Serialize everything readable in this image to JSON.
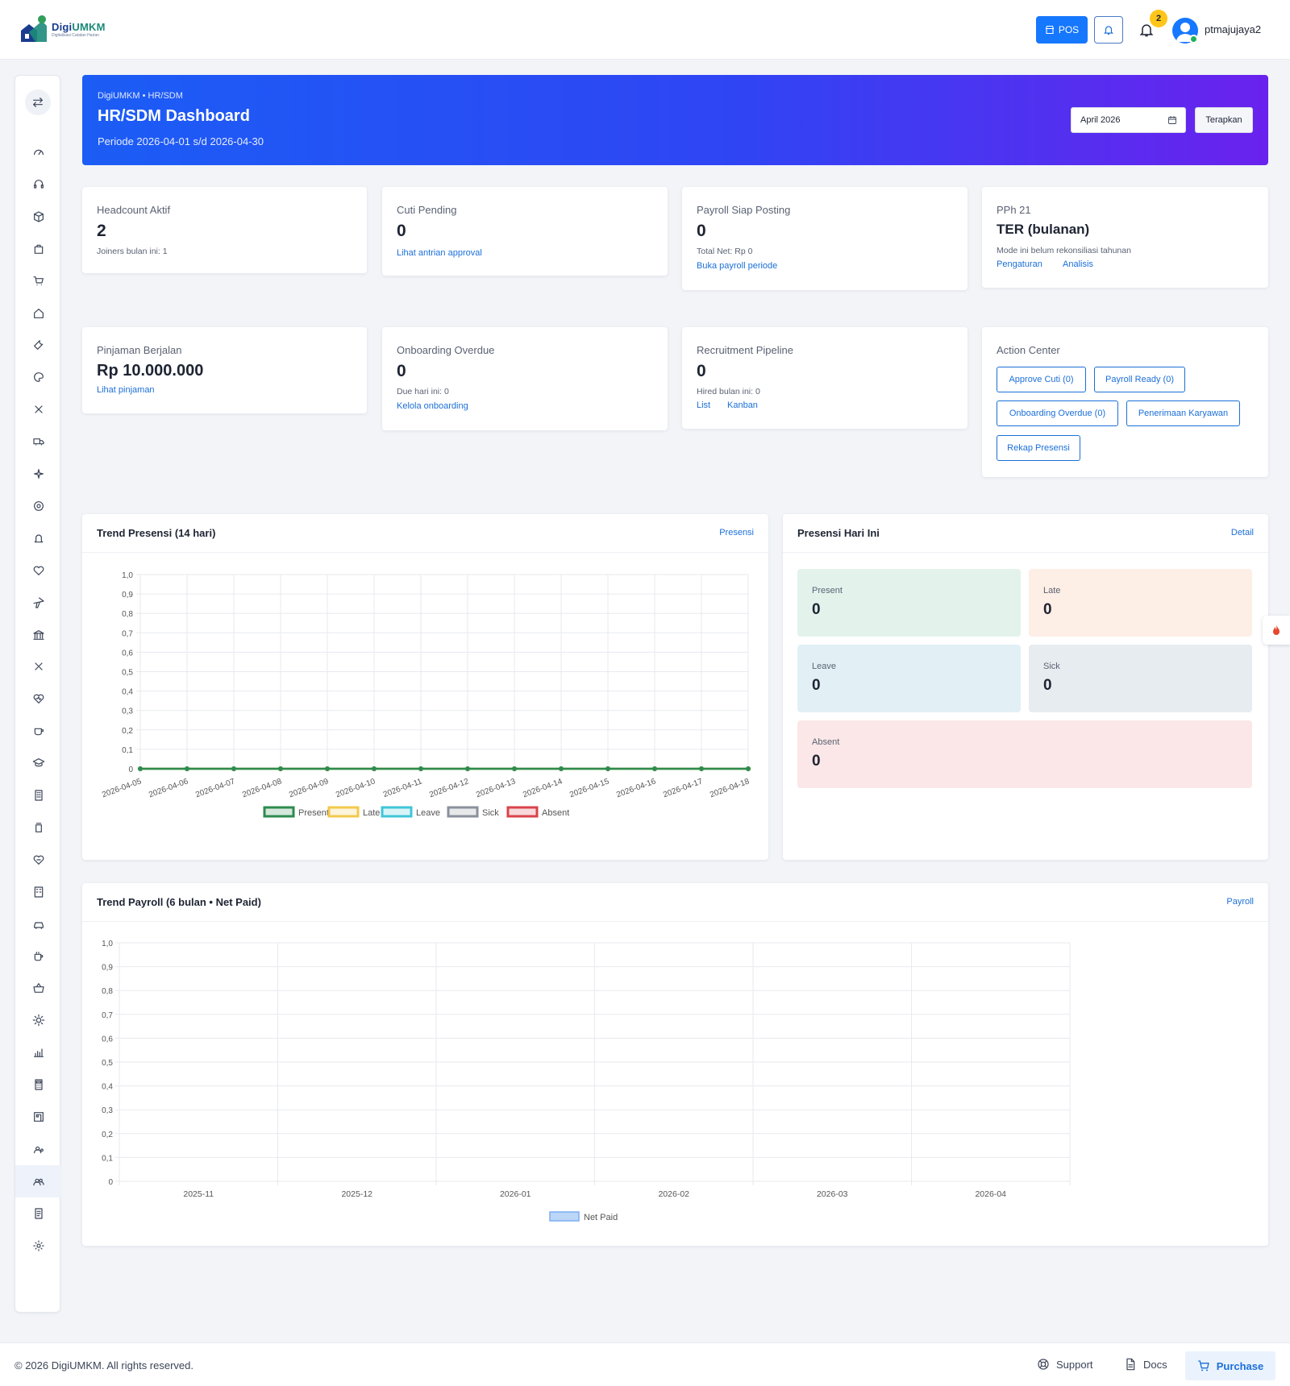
{
  "header": {
    "logo_name_a": "Digi",
    "logo_name_b": "UMKM",
    "logo_tagline": "Digitalisasi Catatan Harian",
    "pos_label": "POS",
    "notification_count": "2",
    "username": "ptmajujaya2"
  },
  "banner": {
    "breadcrumb": "DigiUMKM • HR/SDM",
    "title": "HR/SDM Dashboard",
    "period": "Periode 2026-04-01 s/d 2026-04-30",
    "month_value": "April 2026",
    "apply_label": "Terapkan"
  },
  "cards": {
    "headcount": {
      "label": "Headcount Aktif",
      "value": "2",
      "sub": "Joiners bulan ini: 1"
    },
    "cuti": {
      "label": "Cuti Pending",
      "value": "0",
      "link": "Lihat antrian approval"
    },
    "payroll": {
      "label": "Payroll Siap Posting",
      "value": "0",
      "sub": "Total Net: Rp 0",
      "link": "Buka payroll periode"
    },
    "pph": {
      "label": "PPh 21",
      "value": "TER (bulanan)",
      "sub": "Mode ini belum rekonsiliasi tahunan",
      "link1": "Pengaturan",
      "link2": "Analisis"
    },
    "pinjaman": {
      "label": "Pinjaman Berjalan",
      "value": "Rp 10.000.000",
      "link": "Lihat pinjaman"
    },
    "onboarding": {
      "label": "Onboarding Overdue",
      "value": "0",
      "sub": "Due hari ini: 0",
      "link": "Kelola onboarding"
    },
    "recruitment": {
      "label": "Recruitment Pipeline",
      "value": "0",
      "sub": "Hired bulan ini: 0",
      "link1": "List",
      "link2": "Kanban"
    },
    "action": {
      "label": "Action Center",
      "buttons": [
        "Approve Cuti (0)",
        "Payroll Ready (0)",
        "Onboarding Overdue (0)",
        "Penerimaan Karyawan",
        "Rekap Presensi"
      ]
    }
  },
  "trend_presensi": {
    "title": "Trend Presensi (14 hari)",
    "link": "Presensi"
  },
  "presensi_today": {
    "title": "Presensi Hari Ini",
    "link": "Detail",
    "tiles": [
      {
        "label": "Present",
        "value": "0",
        "color": "#e3f3ec"
      },
      {
        "label": "Late",
        "value": "0",
        "color": "#fdeee6"
      },
      {
        "label": "Leave",
        "value": "0",
        "color": "#e2f0f6"
      },
      {
        "label": "Sick",
        "value": "0",
        "color": "#e6ecef"
      },
      {
        "label": "Absent",
        "value": "0",
        "color": "#fbe7e7"
      }
    ]
  },
  "trend_payroll": {
    "title": "Trend Payroll (6 bulan • Net Paid)",
    "link": "Payroll"
  },
  "chart_data": [
    {
      "type": "line",
      "x": [
        "2026-04-05",
        "2026-04-06",
        "2026-04-07",
        "2026-04-08",
        "2026-04-09",
        "2026-04-10",
        "2026-04-11",
        "2026-04-12",
        "2026-04-13",
        "2026-04-14",
        "2026-04-15",
        "2026-04-16",
        "2026-04-17",
        "2026-04-18"
      ],
      "series": [
        {
          "name": "Present",
          "color": "#2e8b4e",
          "values": [
            0,
            0,
            0,
            0,
            0,
            0,
            0,
            0,
            0,
            0,
            0,
            0,
            0,
            0
          ]
        },
        {
          "name": "Late",
          "color": "#f2c94c",
          "values": [
            0,
            0,
            0,
            0,
            0,
            0,
            0,
            0,
            0,
            0,
            0,
            0,
            0,
            0
          ]
        },
        {
          "name": "Leave",
          "color": "#3fc6d8",
          "values": [
            0,
            0,
            0,
            0,
            0,
            0,
            0,
            0,
            0,
            0,
            0,
            0,
            0,
            0
          ]
        },
        {
          "name": "Sick",
          "color": "#8a919c",
          "values": [
            0,
            0,
            0,
            0,
            0,
            0,
            0,
            0,
            0,
            0,
            0,
            0,
            0,
            0
          ]
        },
        {
          "name": "Absent",
          "color": "#d9434a",
          "values": [
            0,
            0,
            0,
            0,
            0,
            0,
            0,
            0,
            0,
            0,
            0,
            0,
            0,
            0
          ]
        }
      ],
      "yticks": [
        "0",
        "0,1",
        "0,2",
        "0,3",
        "0,4",
        "0,5",
        "0,6",
        "0,7",
        "0,8",
        "0,9",
        "1,0"
      ],
      "ylim": [
        0,
        1
      ],
      "grid": true,
      "legend": "bottom"
    },
    {
      "type": "bar",
      "categories": [
        "2025-11",
        "2025-12",
        "2026-01",
        "2026-02",
        "2026-03",
        "2026-04"
      ],
      "series": [
        {
          "name": "Net Paid",
          "color": "#bcd6f7",
          "values": [
            0,
            0,
            0,
            0,
            0,
            0
          ]
        }
      ],
      "yticks": [
        "0",
        "0,1",
        "0,2",
        "0,3",
        "0,4",
        "0,5",
        "0,6",
        "0,7",
        "0,8",
        "0,9",
        "1,0"
      ],
      "ylim": [
        0,
        1
      ],
      "grid": true,
      "legend": "bottom"
    }
  ],
  "footer": {
    "copyright": "© 2026 DigiUMKM. All rights reserved.",
    "support": "Support",
    "docs": "Docs",
    "purchase": "Purchase"
  },
  "sidebar": {
    "icons": [
      "swap-icon",
      "gauge-icon",
      "headset-icon",
      "box-icon",
      "bag-icon",
      "cart-icon",
      "home-icon",
      "wrench-icon",
      "palette-icon",
      "scissors-icon",
      "truck-icon",
      "sparkle-icon",
      "target-icon",
      "bell-icon",
      "heart-icon",
      "plane-icon",
      "bank-icon",
      "scissors-icon",
      "heart-pulse-icon",
      "coffee-icon",
      "graduation-icon",
      "building-icon",
      "jar-icon",
      "heart-shield-icon",
      "office-icon",
      "car-icon",
      "cup-icon",
      "basket-icon",
      "gear-icon",
      "chart-icon",
      "calculator-icon",
      "store-icon",
      "user-gear-icon",
      "users-icon",
      "report-icon",
      "settings-icon"
    ],
    "active": "users-icon"
  }
}
